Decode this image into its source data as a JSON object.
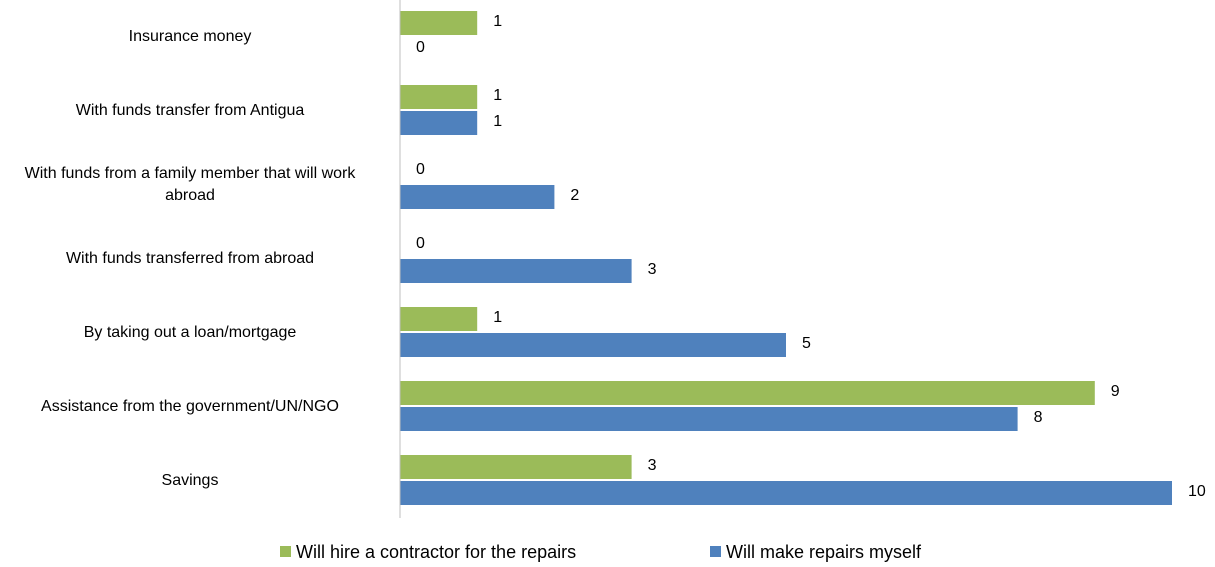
{
  "chart_data": {
    "type": "hbar",
    "categories": [
      "Insurance money",
      "With funds transfer from Antigua",
      "With funds from a family member that will work abroad",
      "With funds transferred from abroad",
      "By taking out a loan/mortgage",
      "Assistance from the government/UN/NGO",
      "Savings"
    ],
    "series": [
      {
        "name": "Will hire a contractor for the repairs",
        "color": "#9bbb59",
        "values": [
          1,
          1,
          0,
          0,
          1,
          9,
          3
        ]
      },
      {
        "name": "Will make repairs myself",
        "color": "#4f81bd",
        "values": [
          0,
          1,
          2,
          3,
          5,
          8,
          10
        ]
      }
    ],
    "xlim": [
      0,
      10
    ]
  }
}
